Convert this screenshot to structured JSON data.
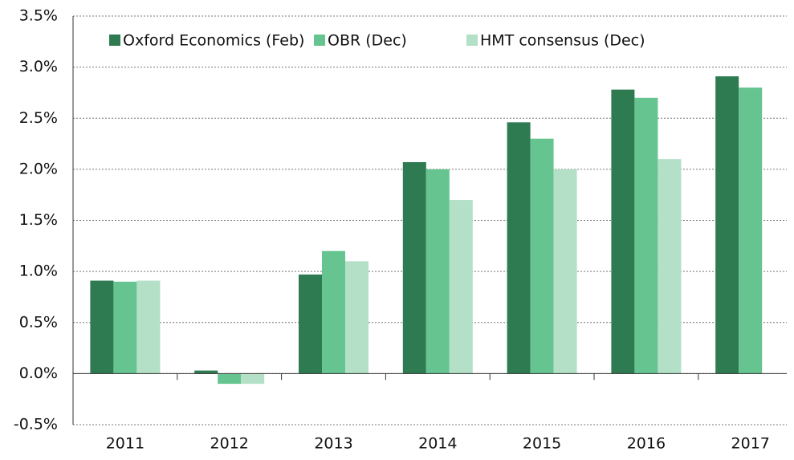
{
  "chart_data": {
    "type": "bar",
    "categories": [
      "2011",
      "2012",
      "2013",
      "2014",
      "2015",
      "2016",
      "2017"
    ],
    "series": [
      {
        "name": "Oxford Economics (Feb)",
        "color": "#2e7b52",
        "values": [
          0.91,
          0.03,
          0.97,
          2.07,
          2.46,
          2.78,
          2.91
        ]
      },
      {
        "name": "OBR (Dec)",
        "color": "#66c491",
        "values": [
          0.9,
          -0.1,
          1.2,
          2.0,
          2.3,
          2.7,
          2.8
        ]
      },
      {
        "name": "HMT consensus (Dec)",
        "color": "#b3e0c6",
        "values": [
          0.91,
          -0.1,
          1.1,
          1.7,
          2.0,
          2.1,
          null
        ]
      }
    ],
    "ylim": [
      -0.5,
      3.5
    ],
    "yticks": [
      {
        "value": -0.5,
        "label": "-0.5%"
      },
      {
        "value": 0,
        "label": "0.0%"
      },
      {
        "value": 0.5,
        "label": "0.5%"
      },
      {
        "value": 1,
        "label": "1.0%"
      },
      {
        "value": 1.5,
        "label": "1.5%"
      },
      {
        "value": 2,
        "label": "2.0%"
      },
      {
        "value": 2.5,
        "label": "2.5%"
      },
      {
        "value": 3,
        "label": "3.0%"
      },
      {
        "value": 3.5,
        "label": "3.5%"
      }
    ],
    "grid": true,
    "legend": "top-left"
  }
}
